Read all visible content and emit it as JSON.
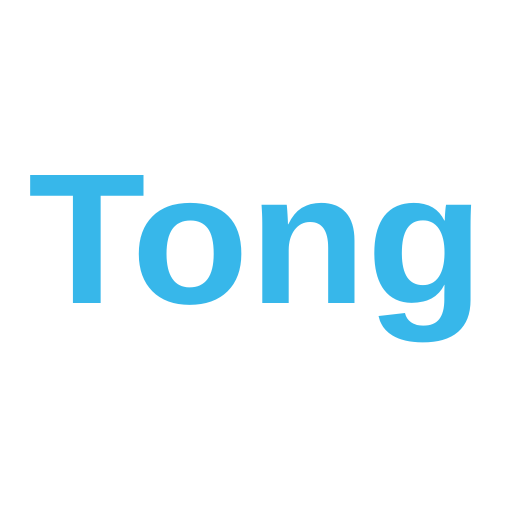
{
  "logo": {
    "text": "Tong",
    "color": "#37B7EA",
    "background": "#FFFFFF"
  }
}
